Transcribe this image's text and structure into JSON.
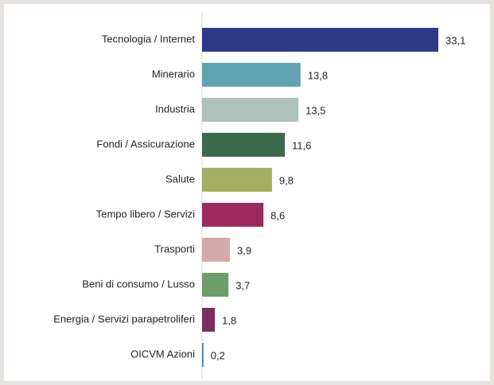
{
  "chart_data": {
    "type": "hbar",
    "categories": [
      "Tecnologia / Internet",
      "Minerario",
      "Industria",
      "Fondi / Assicurazione",
      "Salute",
      "Tempo libero / Servizi",
      "Trasporti",
      "Beni di consumo / Lusso",
      "Energia / Servizi parapetroliferi",
      "OICVM Azioni"
    ],
    "values": [
      33.1,
      13.8,
      13.5,
      11.6,
      9.8,
      8.6,
      3.9,
      3.7,
      1.8,
      0.2
    ],
    "value_labels": [
      "33,1",
      "13,8",
      "13,5",
      "11,6",
      "9,8",
      "8,6",
      "3,9",
      "3,7",
      "1,8",
      "0,2"
    ],
    "colors": [
      "#2e3a87",
      "#5fa3b0",
      "#abc1b9",
      "#3b6a4b",
      "#a4ae63",
      "#9d2a5f",
      "#d3aaa9",
      "#6d9e69",
      "#7b2e5d",
      "#4a80a9"
    ]
  }
}
